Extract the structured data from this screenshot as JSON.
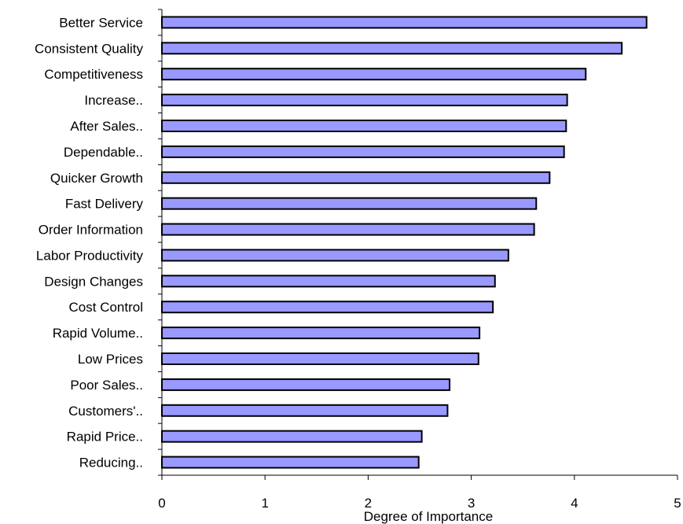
{
  "chart_data": {
    "type": "bar",
    "orientation": "horizontal",
    "categories": [
      "Better Service",
      "Consistent Quality",
      "Competitiveness",
      "Increase..",
      "After Sales..",
      "Dependable..",
      "Quicker Growth",
      "Fast Delivery",
      "Order Information",
      "Labor Productivity",
      "Design Changes",
      "Cost Control",
      "Rapid Volume..",
      "Low Prices",
      "Poor Sales..",
      "Customers'..",
      "Rapid Price..",
      "Reducing.."
    ],
    "values": [
      4.7,
      4.46,
      4.11,
      3.93,
      3.92,
      3.9,
      3.76,
      3.63,
      3.61,
      3.36,
      3.23,
      3.21,
      3.08,
      3.07,
      2.79,
      2.77,
      2.52,
      2.49
    ],
    "xlabel": "Degree of Importance",
    "xlim": [
      0,
      5
    ],
    "xticks": [
      "0",
      "1",
      "2",
      "3",
      "4",
      "5"
    ],
    "grid": false,
    "legend": "none",
    "bar_color": "#9999ff",
    "bar_edge_color": "#000000"
  }
}
